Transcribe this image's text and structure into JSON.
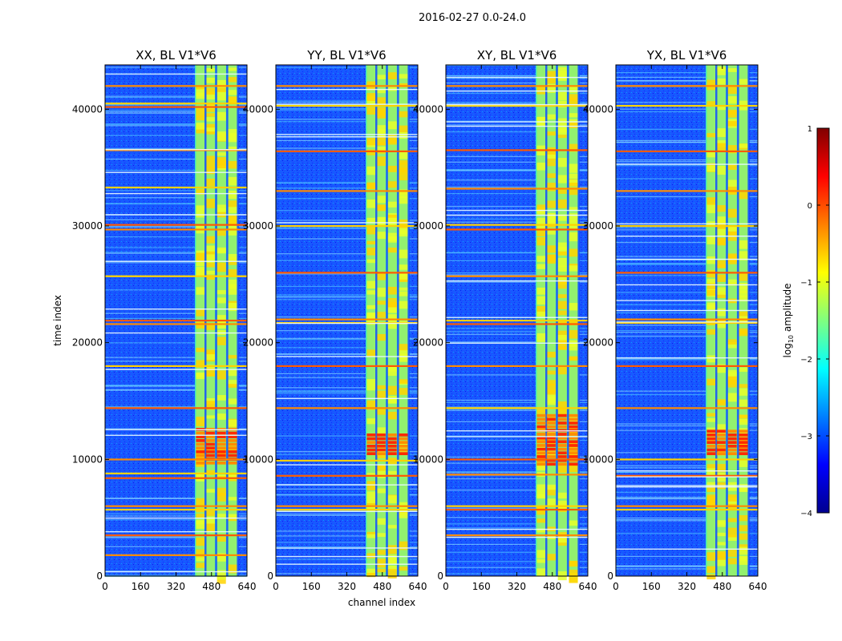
{
  "chart_data": {
    "type": "heatmap",
    "suptitle": "2016-02-27 0.0-24.0",
    "xlabel": "channel index",
    "ylabel": "time index",
    "x_ticks": [
      0,
      160,
      320,
      480,
      640
    ],
    "y_ticks": [
      0,
      10000,
      20000,
      30000,
      40000
    ],
    "xlim": [
      0,
      640
    ],
    "ylim": [
      0,
      43800
    ],
    "signal_band": [
      405,
      600
    ],
    "sub_bands": [
      [
        410,
        450
      ],
      [
        455,
        495
      ],
      [
        505,
        545
      ],
      [
        555,
        595
      ]
    ],
    "panels": [
      {
        "title": "XX, BL V1*V6",
        "strong_time_range": [
          9500,
          12600
        ],
        "rfi_rows": [
          42000,
          40500,
          40200,
          36500,
          33300,
          30100,
          29700,
          25700,
          21900,
          21600,
          18000,
          14400,
          10000,
          8800,
          8400,
          6000,
          5700,
          3500,
          1800
        ]
      },
      {
        "title": "YY, BL V1*V6",
        "strong_time_range": [
          10300,
          12200
        ],
        "rfi_rows": [
          42000,
          40300,
          36400,
          33000,
          30000,
          26000,
          22000,
          21700,
          18000,
          14400,
          9900,
          8600,
          6000,
          5700
        ]
      },
      {
        "title": "XY, BL V1*V6",
        "strong_time_range": [
          9400,
          13600
        ],
        "rfi_rows": [
          42000,
          40300,
          36500,
          33200,
          30100,
          29700,
          25700,
          21900,
          21600,
          18000,
          14400,
          10000,
          8700,
          6000,
          5700,
          3500
        ]
      },
      {
        "title": "YX, BL V1*V6",
        "strong_time_range": [
          10300,
          12500
        ],
        "rfi_rows": [
          42000,
          40300,
          36400,
          33000,
          30000,
          26000,
          22000,
          21700,
          18000,
          14400,
          10000,
          8600,
          6000,
          5700
        ]
      }
    ],
    "colorbar": {
      "label": "log10 amplitude",
      "range": [
        -4,
        1
      ],
      "ticks": [
        1,
        0,
        -1,
        -2,
        -3,
        -4
      ],
      "tick_labels": [
        "1",
        "0",
        "−1",
        "−2",
        "−3",
        "−4"
      ],
      "colormap": "jet"
    }
  }
}
